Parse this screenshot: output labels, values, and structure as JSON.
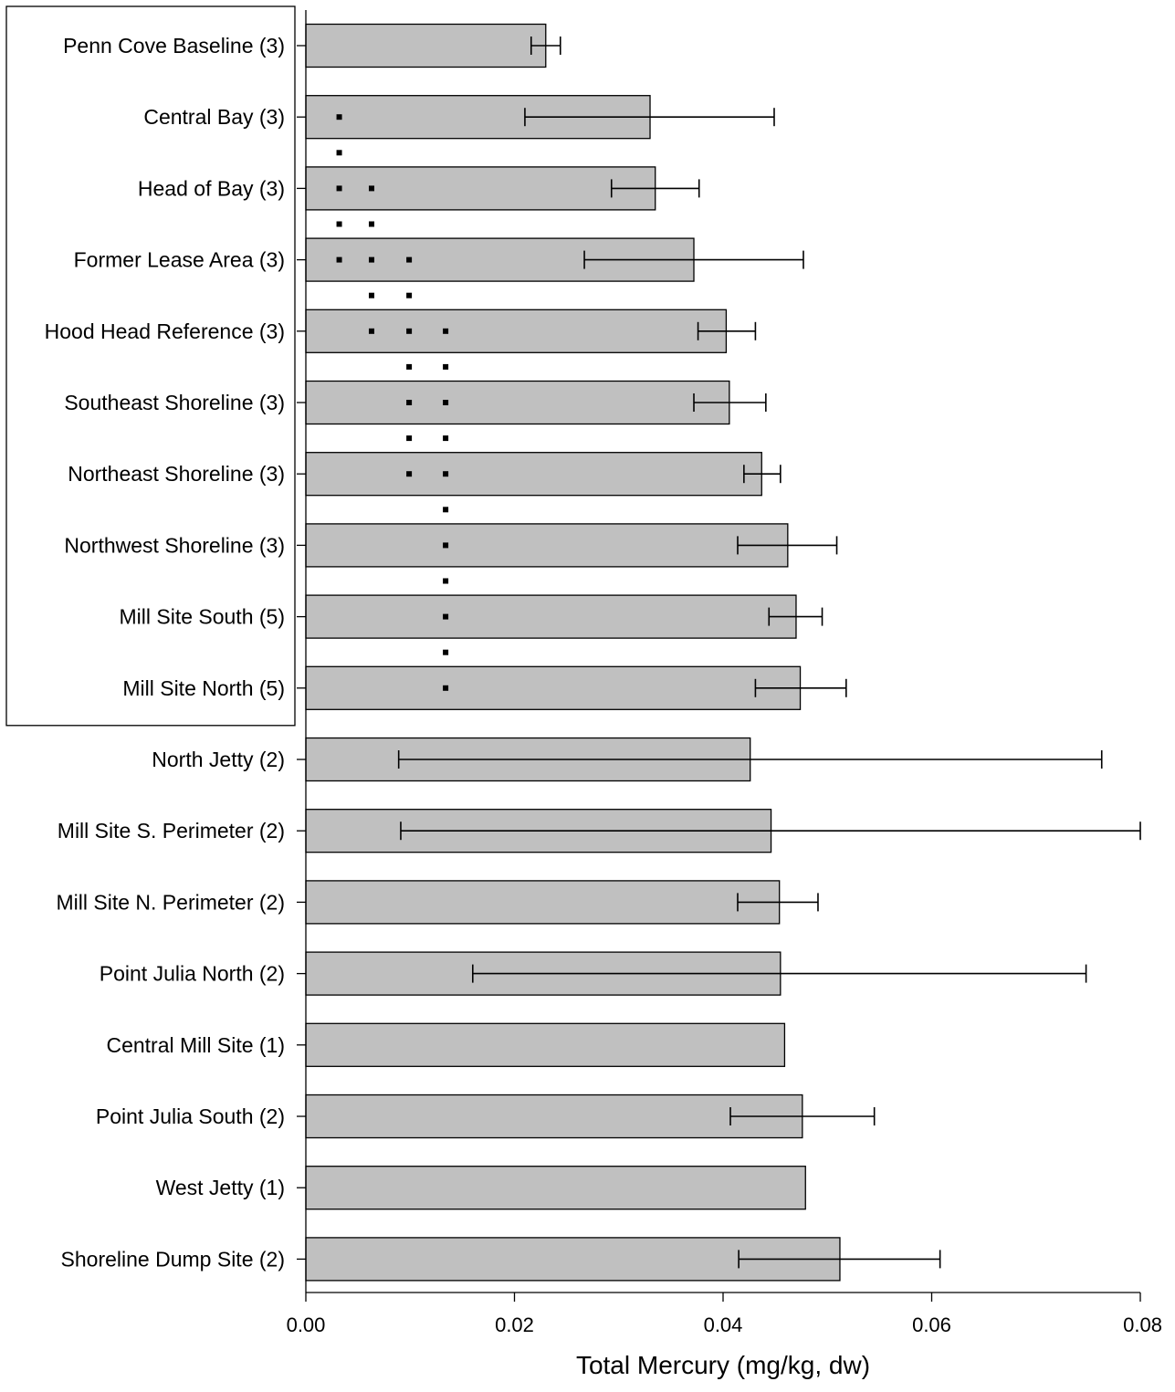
{
  "chart_data": {
    "type": "bar",
    "orientation": "horizontal",
    "xlabel": "Total Mercury (mg/kg, dw)",
    "ylabel": "",
    "title": "",
    "xlim": [
      0,
      0.08
    ],
    "xticks": [
      0.0,
      0.02,
      0.04,
      0.06,
      0.08
    ],
    "xtick_labels": [
      "0.00",
      "0.02",
      "0.04",
      "0.06",
      "0.08"
    ],
    "grid": false,
    "bar_color": "#c0c0c0",
    "categories": [
      "Penn Cove Baseline (3)",
      "Central Bay (3)",
      "Head of Bay (3)",
      "Former Lease Area (3)",
      "Hood Head Reference (3)",
      "Southeast Shoreline (3)",
      "Northeast Shoreline (3)",
      "Northwest Shoreline (3)",
      "Mill Site South (5)",
      "Mill Site North (5)",
      "North Jetty (2)",
      "Mill Site S. Perimeter (2)",
      "Mill Site N. Perimeter (2)",
      "Point Julia North (2)",
      "Central Mill Site (1)",
      "Point Julia South (2)",
      "West Jetty (1)",
      "Shoreline Dump Site (2)"
    ],
    "values": [
      0.023,
      0.033,
      0.0335,
      0.0372,
      0.0403,
      0.0406,
      0.0437,
      0.0462,
      0.047,
      0.0474,
      0.0426,
      0.0446,
      0.0454,
      0.0455,
      0.0459,
      0.0476,
      0.0479,
      0.0512
    ],
    "error_bars": [
      [
        0.0216,
        0.0244
      ],
      [
        0.021,
        0.0449
      ],
      [
        0.0293,
        0.0377
      ],
      [
        0.0267,
        0.0477
      ],
      [
        0.0376,
        0.0431
      ],
      [
        0.0372,
        0.0441
      ],
      [
        0.042,
        0.0455
      ],
      [
        0.0414,
        0.0509
      ],
      [
        0.0444,
        0.0495
      ],
      [
        0.0431,
        0.0518
      ],
      [
        0.0089,
        0.0763
      ],
      [
        0.0091,
        0.08
      ],
      [
        0.0414,
        0.0491
      ],
      [
        0.016,
        0.0748
      ],
      null,
      [
        0.0407,
        0.0545
      ],
      null,
      [
        0.0415,
        0.0608
      ]
    ],
    "significance_groups": [
      {
        "x": 0.0032,
        "from": 1,
        "to": 3
      },
      {
        "x": 0.0063,
        "from": 2,
        "to": 4
      },
      {
        "x": 0.0099,
        "from": 3,
        "to": 6
      },
      {
        "x": 0.0134,
        "from": 4,
        "to": 9
      }
    ],
    "boxed_categories": {
      "from": 0,
      "to": 9
    }
  }
}
